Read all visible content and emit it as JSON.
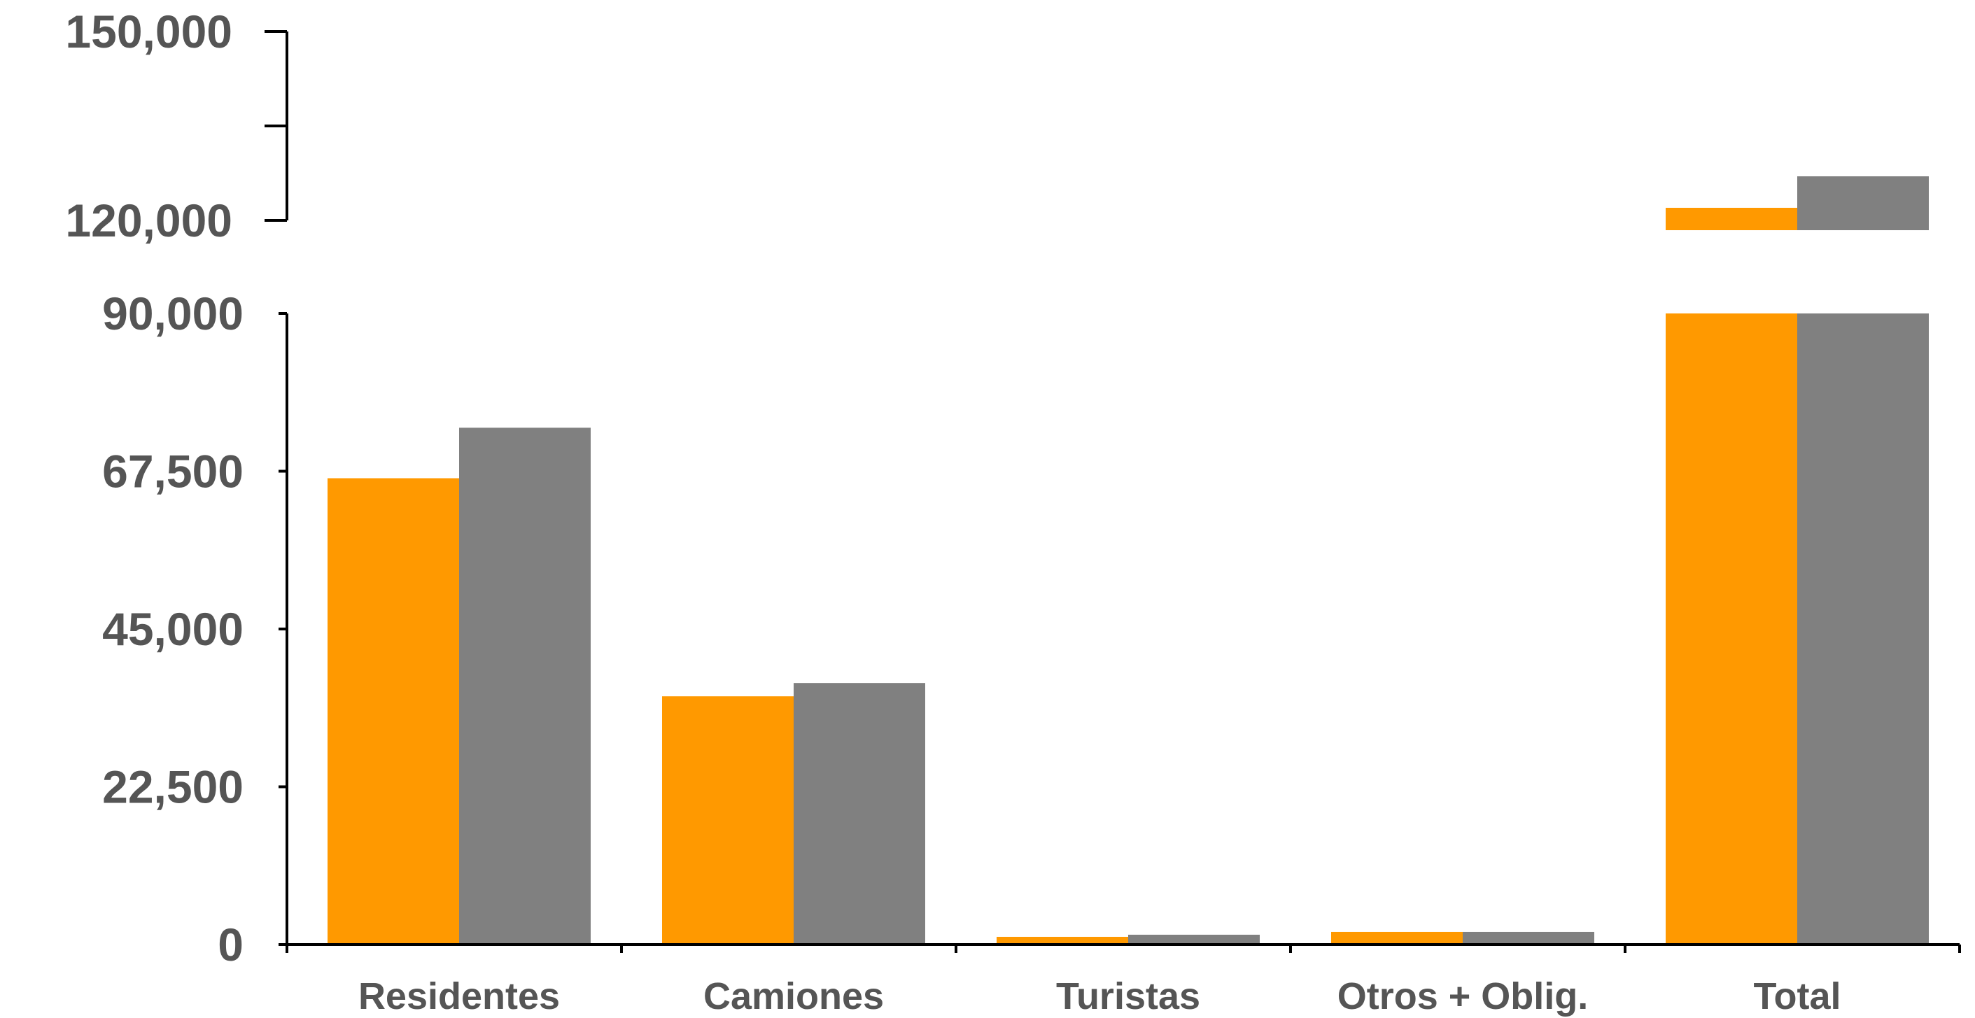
{
  "chart_data": {
    "type": "bar",
    "title": "",
    "xlabel": "",
    "ylabel": "",
    "broken_axis": true,
    "grid": false,
    "legend": "none",
    "categories": [
      "Residentes",
      "Camiones",
      "Turistas",
      "Otros + Oblig.",
      "Total"
    ],
    "series": [
      {
        "color": "#FF9900",
        "values": [
          66500,
          35400,
          1100,
          1800,
          122000
        ]
      },
      {
        "color": "#808080",
        "values": [
          73700,
          37300,
          1400,
          1800,
          127000
        ]
      }
    ],
    "lower_axis": {
      "ylim": [
        0,
        90000
      ],
      "ticks": [
        0,
        22500,
        45000,
        67500,
        90000
      ],
      "tick_labels": [
        "0",
        "22,500",
        "45,000",
        "67,500",
        "90,000"
      ]
    },
    "upper_axis": {
      "ylim": [
        120000,
        150000
      ],
      "ticks": [
        120000,
        135000,
        150000
      ],
      "tick_labels": [
        "120,000",
        "",
        "150,000"
      ]
    }
  }
}
